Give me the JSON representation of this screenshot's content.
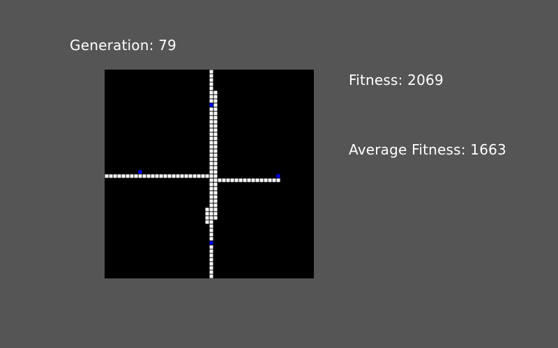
{
  "hud": {
    "generation_label": "Generation:",
    "generation": 79,
    "fitness_label": "Fitness:",
    "fitness": 2069,
    "average_fitness_label": "Average Fitness:",
    "average_fitness": 1663
  },
  "grid": {
    "columns": 50,
    "rows": 50,
    "trail_cells": [
      [
        25,
        0
      ],
      [
        25,
        1
      ],
      [
        25,
        2
      ],
      [
        25,
        3
      ],
      [
        25,
        4
      ],
      [
        25,
        5
      ],
      [
        25,
        6
      ],
      [
        25,
        7
      ],
      [
        25,
        8
      ],
      [
        25,
        9
      ],
      [
        25,
        10
      ],
      [
        25,
        11
      ],
      [
        25,
        12
      ],
      [
        25,
        13
      ],
      [
        25,
        14
      ],
      [
        25,
        15
      ],
      [
        25,
        16
      ],
      [
        25,
        17
      ],
      [
        25,
        18
      ],
      [
        25,
        19
      ],
      [
        25,
        20
      ],
      [
        25,
        21
      ],
      [
        25,
        22
      ],
      [
        25,
        23
      ],
      [
        25,
        24
      ],
      [
        25,
        25
      ],
      [
        25,
        26
      ],
      [
        25,
        27
      ],
      [
        25,
        28
      ],
      [
        25,
        29
      ],
      [
        25,
        30
      ],
      [
        25,
        31
      ],
      [
        25,
        32
      ],
      [
        25,
        33
      ],
      [
        25,
        34
      ],
      [
        25,
        35
      ],
      [
        25,
        36
      ],
      [
        25,
        37
      ],
      [
        25,
        38
      ],
      [
        25,
        39
      ],
      [
        25,
        40
      ],
      [
        25,
        41
      ],
      [
        25,
        42
      ],
      [
        25,
        43
      ],
      [
        25,
        44
      ],
      [
        25,
        45
      ],
      [
        25,
        46
      ],
      [
        25,
        47
      ],
      [
        25,
        48
      ],
      [
        25,
        49
      ],
      [
        26,
        5
      ],
      [
        26,
        6
      ],
      [
        26,
        7
      ],
      [
        26,
        8
      ],
      [
        26,
        9
      ],
      [
        26,
        10
      ],
      [
        26,
        11
      ],
      [
        26,
        12
      ],
      [
        26,
        13
      ],
      [
        26,
        14
      ],
      [
        26,
        15
      ],
      [
        26,
        16
      ],
      [
        26,
        17
      ],
      [
        26,
        18
      ],
      [
        26,
        19
      ],
      [
        26,
        20
      ],
      [
        26,
        21
      ],
      [
        26,
        22
      ],
      [
        26,
        23
      ],
      [
        26,
        24
      ],
      [
        26,
        25
      ],
      [
        26,
        26
      ],
      [
        26,
        27
      ],
      [
        26,
        28
      ],
      [
        26,
        29
      ],
      [
        26,
        30
      ],
      [
        26,
        31
      ],
      [
        26,
        32
      ],
      [
        26,
        33
      ],
      [
        26,
        34
      ],
      [
        26,
        35
      ],
      [
        24,
        33
      ],
      [
        24,
        34
      ],
      [
        24,
        35
      ],
      [
        24,
        36
      ],
      [
        0,
        25
      ],
      [
        1,
        25
      ],
      [
        2,
        25
      ],
      [
        3,
        25
      ],
      [
        4,
        25
      ],
      [
        5,
        25
      ],
      [
        6,
        25
      ],
      [
        7,
        25
      ],
      [
        8,
        25
      ],
      [
        9,
        25
      ],
      [
        10,
        25
      ],
      [
        11,
        25
      ],
      [
        12,
        25
      ],
      [
        13,
        25
      ],
      [
        14,
        25
      ],
      [
        15,
        25
      ],
      [
        16,
        25
      ],
      [
        17,
        25
      ],
      [
        18,
        25
      ],
      [
        19,
        25
      ],
      [
        20,
        25
      ],
      [
        21,
        25
      ],
      [
        22,
        25
      ],
      [
        23,
        25
      ],
      [
        24,
        25
      ],
      [
        26,
        26
      ],
      [
        27,
        26
      ],
      [
        28,
        26
      ],
      [
        29,
        26
      ],
      [
        30,
        26
      ],
      [
        31,
        26
      ],
      [
        32,
        26
      ],
      [
        33,
        26
      ],
      [
        34,
        26
      ],
      [
        35,
        26
      ],
      [
        36,
        26
      ],
      [
        37,
        26
      ],
      [
        38,
        26
      ],
      [
        39,
        26
      ],
      [
        40,
        26
      ],
      [
        41,
        26
      ]
    ],
    "food_cells": [
      [
        25,
        8
      ],
      [
        8,
        24
      ],
      [
        41,
        25
      ],
      [
        25,
        41
      ]
    ],
    "colors": {
      "background": "#000000",
      "trail": "#ffffff",
      "food": "#0000ff"
    }
  }
}
